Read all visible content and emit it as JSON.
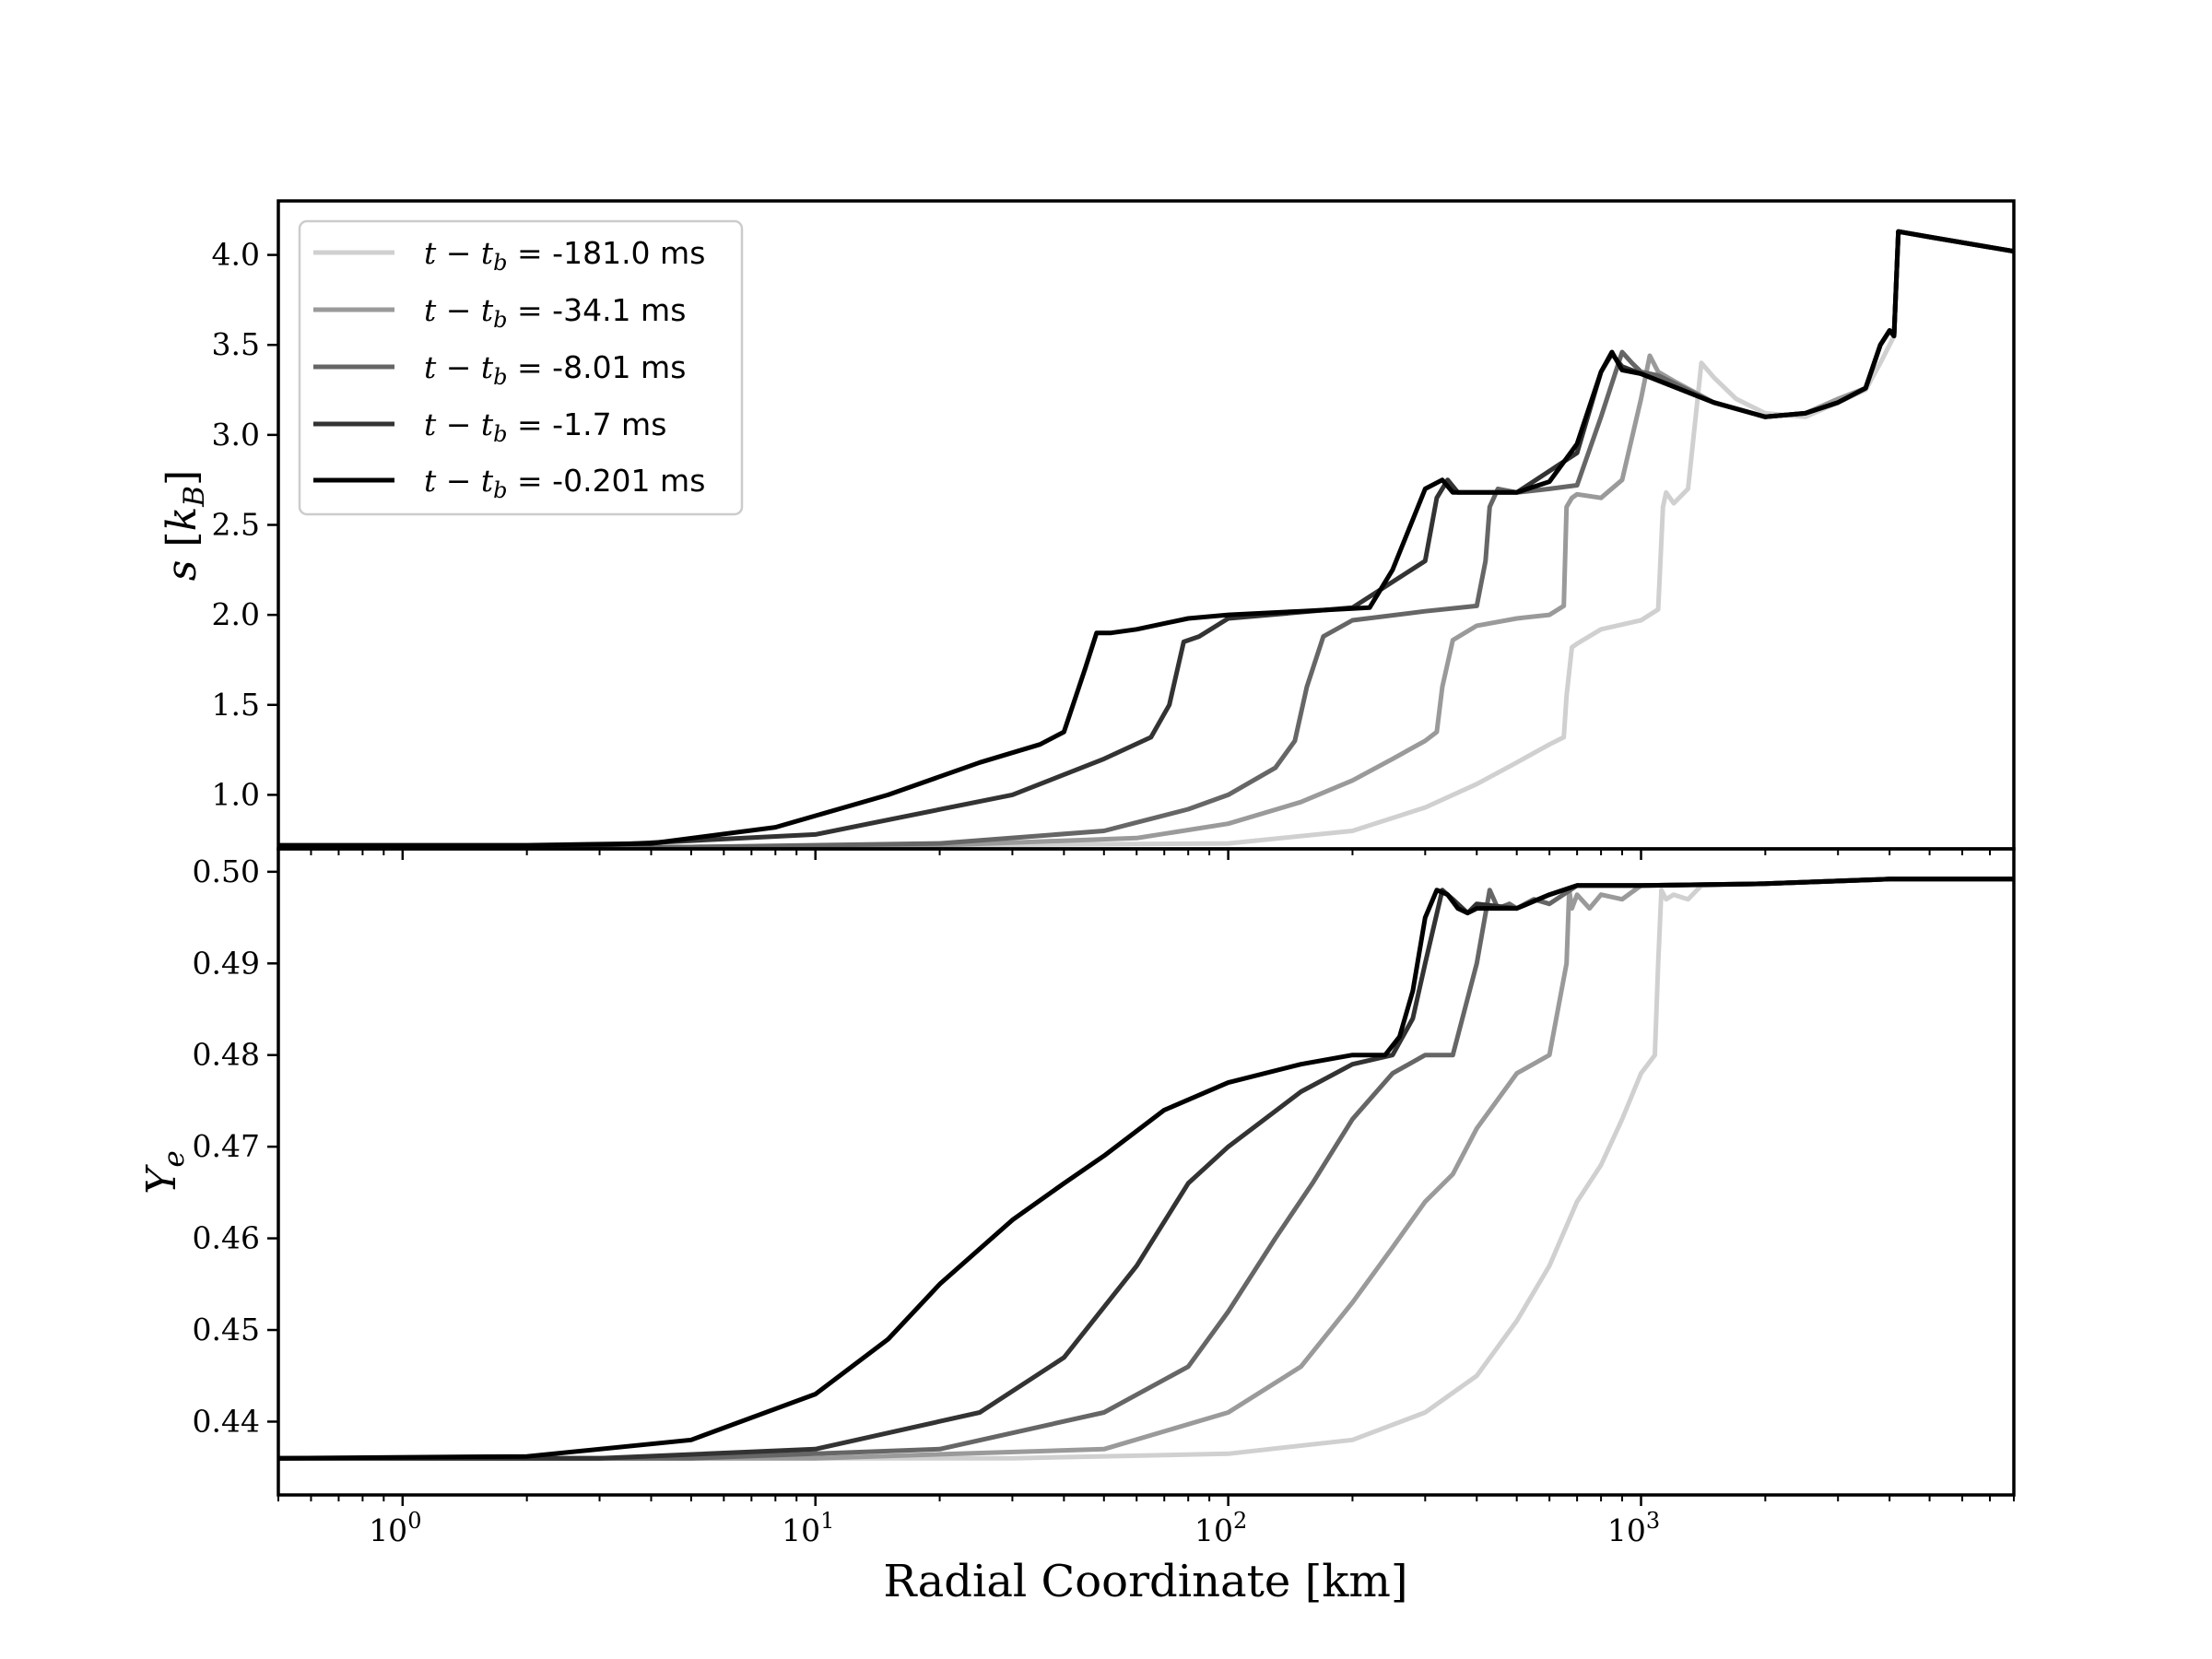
{
  "chart_data": [
    {
      "type": "line",
      "panel": "top",
      "ylabel": "s [k_B]",
      "ylabel_main": "s",
      "ylabel_unit_open": "[",
      "ylabel_unit_k": "k",
      "ylabel_unit_sub": "B",
      "ylabel_unit_close": "]",
      "xscale": "log",
      "xlim": [
        0.5,
        8000
      ],
      "ylim": [
        0.7,
        4.3
      ],
      "yticks": [
        1.0,
        1.5,
        2.0,
        2.5,
        3.0,
        3.5,
        4.0
      ],
      "ytick_labels": [
        "1.0",
        "1.5",
        "2.0",
        "2.5",
        "3.0",
        "3.5",
        "4.0"
      ],
      "grid": false,
      "legend": {
        "placement": "upper-left",
        "entries": [
          {
            "math": "t − t",
            "sub": "b",
            "eq": " = ",
            "value": "-181.0 ms",
            "color": "#d0d0d0"
          },
          {
            "math": "t − t",
            "sub": "b",
            "eq": " = ",
            "value": "-34.1 ms",
            "color": "#9a9a9a"
          },
          {
            "math": "t − t",
            "sub": "b",
            "eq": " = ",
            "value": "-8.01 ms",
            "color": "#666666"
          },
          {
            "math": "t − t",
            "sub": "b",
            "eq": " = ",
            "value": "-1.7 ms",
            "color": "#333333"
          },
          {
            "math": "t − t",
            "sub": "b",
            "eq": " = ",
            "value": "-0.201 ms",
            "color": "#000000"
          }
        ]
      },
      "series": [
        {
          "color": "#d0d0d0",
          "x": [
            0.5,
            5,
            20,
            100,
            200,
            300,
            400,
            500,
            600,
            650,
            660,
            680,
            700,
            800,
            1000,
            1100,
            1130,
            1150,
            1200,
            1300,
            1400,
            1500,
            1700,
            2000,
            2500,
            3000,
            3500,
            3800,
            4000,
            4100,
            4200,
            5000,
            8000
          ],
          "y": [
            0.71,
            0.71,
            0.72,
            0.73,
            0.8,
            0.93,
            1.06,
            1.18,
            1.28,
            1.32,
            1.55,
            1.82,
            1.84,
            1.92,
            1.97,
            2.03,
            2.6,
            2.68,
            2.62,
            2.7,
            3.4,
            3.32,
            3.2,
            3.12,
            3.1,
            3.18,
            3.25,
            3.4,
            3.5,
            3.55,
            4.13,
            4.1,
            4.02
          ]
        },
        {
          "color": "#9a9a9a",
          "x": [
            0.5,
            5,
            20,
            60,
            100,
            150,
            200,
            250,
            300,
            320,
            330,
            350,
            400,
            500,
            600,
            650,
            660,
            680,
            700,
            800,
            900,
            1000,
            1050,
            1100,
            1200,
            1500,
            2000,
            2500,
            3000,
            3500,
            3800,
            4000,
            4100,
            4200,
            5000,
            8000
          ],
          "y": [
            0.71,
            0.71,
            0.72,
            0.76,
            0.84,
            0.96,
            1.08,
            1.2,
            1.3,
            1.35,
            1.6,
            1.86,
            1.94,
            1.98,
            2.0,
            2.05,
            2.6,
            2.65,
            2.67,
            2.65,
            2.75,
            3.2,
            3.44,
            3.35,
            3.3,
            3.18,
            3.1,
            3.12,
            3.2,
            3.26,
            3.5,
            3.58,
            3.55,
            4.13,
            4.1,
            4.02
          ]
        },
        {
          "color": "#666666",
          "x": [
            0.5,
            5,
            20,
            50,
            80,
            100,
            130,
            145,
            155,
            170,
            200,
            300,
            400,
            420,
            430,
            450,
            500,
            600,
            700,
            800,
            900,
            950,
            1000,
            1100,
            1500,
            2000,
            2500,
            3000,
            3500,
            3800,
            4000,
            4100,
            4200,
            5000,
            8000
          ],
          "y": [
            0.71,
            0.71,
            0.73,
            0.8,
            0.92,
            1.0,
            1.15,
            1.3,
            1.6,
            1.88,
            1.97,
            2.02,
            2.05,
            2.3,
            2.6,
            2.7,
            2.68,
            2.7,
            2.72,
            3.1,
            3.46,
            3.4,
            3.35,
            3.33,
            3.18,
            3.1,
            3.12,
            3.18,
            3.26,
            3.5,
            3.58,
            3.55,
            4.13,
            4.1,
            4.02
          ]
        },
        {
          "color": "#333333",
          "x": [
            0.5,
            3,
            10,
            30,
            50,
            65,
            72,
            78,
            85,
            100,
            200,
            300,
            320,
            340,
            360,
            400,
            500,
            700,
            800,
            850,
            900,
            1000,
            1500,
            2000,
            2500,
            3000,
            3500,
            3800,
            4000,
            4100,
            4200,
            5000,
            8000
          ],
          "y": [
            0.71,
            0.72,
            0.78,
            1.0,
            1.2,
            1.32,
            1.5,
            1.85,
            1.88,
            1.98,
            2.04,
            2.3,
            2.65,
            2.75,
            2.68,
            2.68,
            2.68,
            2.9,
            3.35,
            3.45,
            3.38,
            3.34,
            3.18,
            3.1,
            3.12,
            3.18,
            3.26,
            3.5,
            3.58,
            3.55,
            4.13,
            4.1,
            4.02
          ]
        },
        {
          "color": "#000000",
          "x": [
            0.5,
            2,
            4,
            8,
            15,
            25,
            35,
            40,
            45,
            48,
            52,
            60,
            80,
            100,
            150,
            220,
            250,
            300,
            330,
            350,
            400,
            500,
            600,
            700,
            800,
            850,
            900,
            1000,
            1500,
            2000,
            2500,
            3000,
            3500,
            3800,
            4000,
            4100,
            4200,
            5000,
            8000
          ],
          "y": [
            0.72,
            0.72,
            0.73,
            0.82,
            1.0,
            1.18,
            1.28,
            1.35,
            1.7,
            1.9,
            1.9,
            1.92,
            1.98,
            2.0,
            2.02,
            2.04,
            2.25,
            2.7,
            2.75,
            2.68,
            2.68,
            2.68,
            2.74,
            2.95,
            3.35,
            3.46,
            3.36,
            3.34,
            3.18,
            3.1,
            3.12,
            3.18,
            3.26,
            3.5,
            3.58,
            3.55,
            4.13,
            4.1,
            4.02
          ]
        }
      ]
    },
    {
      "type": "line",
      "panel": "bottom",
      "ylabel": "Y_e",
      "ylabel_main": "Y",
      "ylabel_sub": "e",
      "xlabel": "Radial Coordinate [km]",
      "xscale": "log",
      "xlim": [
        0.5,
        8000
      ],
      "ylim": [
        0.432,
        0.5025
      ],
      "xticks": [
        1,
        10,
        100,
        1000
      ],
      "xtick_bases": [
        "10",
        "10",
        "10",
        "10"
      ],
      "xtick_exps": [
        "0",
        "1",
        "2",
        "3"
      ],
      "yticks": [
        0.44,
        0.45,
        0.46,
        0.47,
        0.48,
        0.49,
        0.5
      ],
      "ytick_labels": [
        "0.44",
        "0.45",
        "0.46",
        "0.47",
        "0.48",
        "0.49",
        "0.50"
      ],
      "grid": false,
      "series": [
        {
          "color": "#d0d0d0",
          "x": [
            0.5,
            30,
            100,
            200,
            300,
            400,
            500,
            600,
            700,
            800,
            900,
            1000,
            1080,
            1100,
            1120,
            1150,
            1200,
            1300,
            1400,
            2000,
            4000,
            8000
          ],
          "y": [
            0.436,
            0.436,
            0.4365,
            0.438,
            0.441,
            0.445,
            0.451,
            0.457,
            0.464,
            0.468,
            0.473,
            0.478,
            0.48,
            0.49,
            0.498,
            0.497,
            0.4975,
            0.497,
            0.4985,
            0.4987,
            0.4992,
            0.4992
          ]
        },
        {
          "color": "#9a9a9a",
          "x": [
            0.5,
            10,
            50,
            100,
            150,
            200,
            250,
            300,
            350,
            400,
            500,
            600,
            660,
            670,
            680,
            700,
            750,
            800,
            900,
            1000,
            1200,
            2000,
            4000,
            8000
          ],
          "y": [
            0.436,
            0.436,
            0.437,
            0.441,
            0.446,
            0.453,
            0.459,
            0.464,
            0.467,
            0.472,
            0.478,
            0.48,
            0.49,
            0.498,
            0.496,
            0.4975,
            0.496,
            0.4975,
            0.497,
            0.4985,
            0.4985,
            0.4987,
            0.4992,
            0.4992
          ]
        },
        {
          "color": "#666666",
          "x": [
            0.5,
            5,
            20,
            50,
            80,
            100,
            130,
            160,
            200,
            250,
            300,
            350,
            400,
            430,
            450,
            480,
            500,
            550,
            600,
            700,
            800,
            1000,
            2000,
            4000,
            8000
          ],
          "y": [
            0.436,
            0.436,
            0.437,
            0.441,
            0.446,
            0.452,
            0.46,
            0.466,
            0.473,
            0.478,
            0.48,
            0.48,
            0.49,
            0.498,
            0.496,
            0.4965,
            0.496,
            0.497,
            0.4965,
            0.4985,
            0.4985,
            0.4985,
            0.4987,
            0.4992,
            0.4992
          ]
        },
        {
          "color": "#333333",
          "x": [
            0.5,
            3,
            10,
            25,
            40,
            60,
            80,
            100,
            150,
            200,
            250,
            280,
            300,
            330,
            350,
            380,
            400,
            500,
            600,
            700,
            1000,
            2000,
            4000,
            8000
          ],
          "y": [
            0.436,
            0.436,
            0.437,
            0.441,
            0.447,
            0.457,
            0.466,
            0.47,
            0.476,
            0.479,
            0.48,
            0.484,
            0.49,
            0.498,
            0.497,
            0.4955,
            0.4965,
            0.496,
            0.4975,
            0.4985,
            0.4985,
            0.4987,
            0.4992,
            0.4992
          ]
        },
        {
          "color": "#000000",
          "x": [
            0.5,
            2,
            5,
            10,
            15,
            20,
            30,
            40,
            50,
            70,
            100,
            150,
            200,
            240,
            260,
            280,
            300,
            320,
            340,
            360,
            380,
            400,
            500,
            600,
            700,
            800,
            1000,
            2000,
            4000,
            8000
          ],
          "y": [
            0.436,
            0.4362,
            0.438,
            0.443,
            0.449,
            0.455,
            0.462,
            0.466,
            0.469,
            0.474,
            0.477,
            0.479,
            0.48,
            0.48,
            0.482,
            0.487,
            0.495,
            0.498,
            0.4975,
            0.496,
            0.4955,
            0.496,
            0.496,
            0.4975,
            0.4985,
            0.4985,
            0.4985,
            0.4987,
            0.4992,
            0.4992
          ]
        }
      ]
    }
  ]
}
